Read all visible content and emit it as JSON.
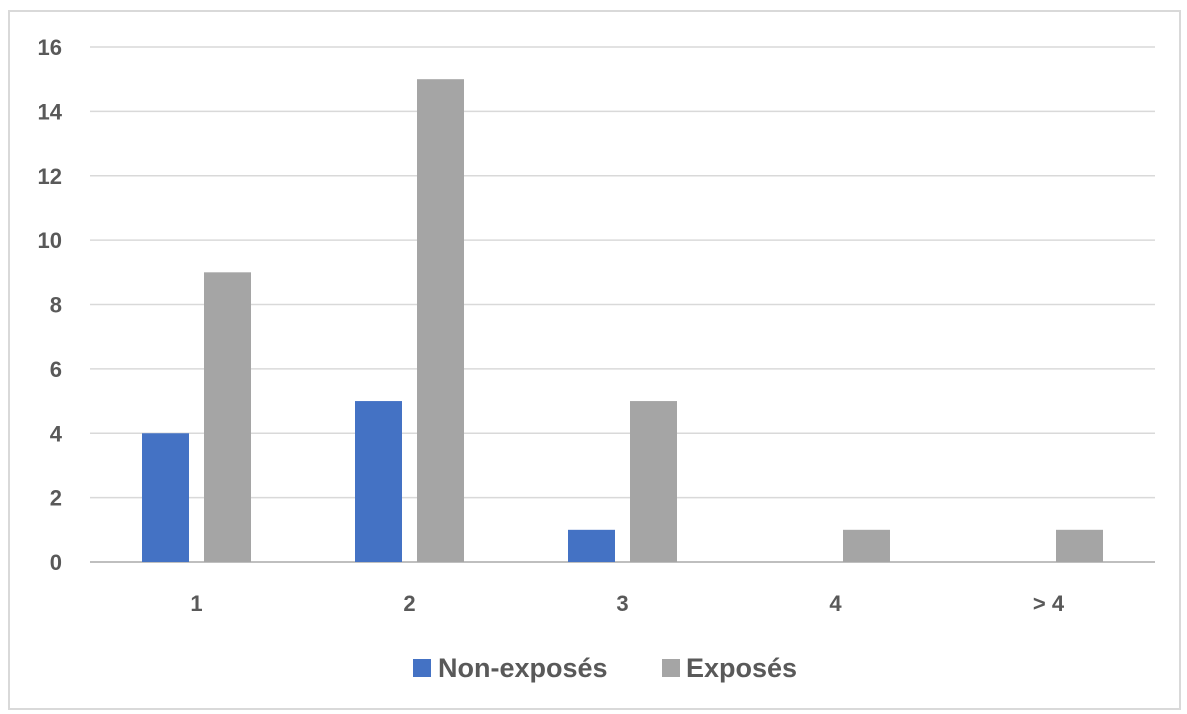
{
  "chart_data": {
    "type": "bar",
    "categories": [
      "1",
      "2",
      "3",
      "4",
      "> 4"
    ],
    "series": [
      {
        "name": "Non-exposés",
        "values": [
          4,
          5,
          1,
          0,
          0
        ],
        "color": "#4472C4"
      },
      {
        "name": "Exposés",
        "values": [
          9,
          15,
          5,
          1,
          1
        ],
        "color": "#A5A5A5"
      }
    ],
    "ylim": [
      0,
      16
    ],
    "yticks": [
      "0",
      "2",
      "4",
      "6",
      "8",
      "10",
      "12",
      "14",
      "16"
    ],
    "grid": true,
    "legend": "bottom"
  }
}
